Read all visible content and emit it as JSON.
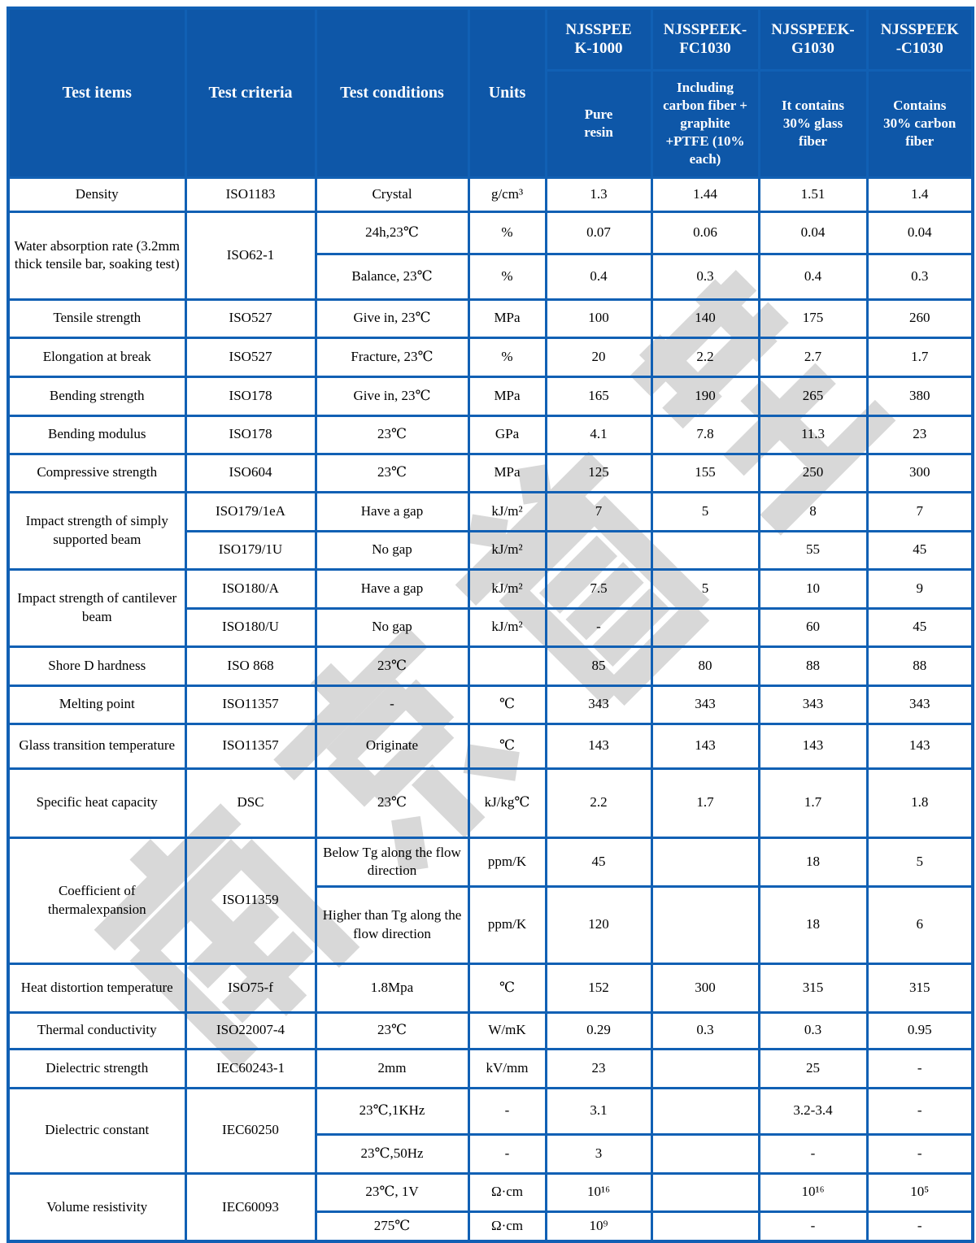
{
  "watermark": {
    "text": "南京首塑",
    "color": "#D8D8D8"
  },
  "colors": {
    "header_bg": "#0E57A8",
    "border_blue": "#1160B4",
    "header_text": "#FFFFFF",
    "body_text": "#000000"
  },
  "header": {
    "static_cols": [
      {
        "label": "Test items"
      },
      {
        "label": "Test criteria"
      },
      {
        "label": "Test conditions"
      },
      {
        "label": "Units"
      }
    ],
    "products": [
      {
        "name_lines": [
          "NJSSPEE",
          "K-1000"
        ],
        "desc_lines": [
          "Pure",
          "resin"
        ]
      },
      {
        "name_lines": [
          "NJSSPEEK-",
          "FC1030"
        ],
        "desc_lines": [
          "Including",
          "carbon fiber +",
          "graphite",
          "+PTFE (10%",
          "each)"
        ]
      },
      {
        "name_lines": [
          "NJSSPEEK-",
          "G1030"
        ],
        "desc_lines": [
          "It contains",
          "30% glass",
          "fiber"
        ]
      },
      {
        "name_lines": [
          "NJSSPEEK",
          "-C1030"
        ],
        "desc_lines": [
          "Contains",
          "30% carbon",
          "fiber"
        ]
      }
    ]
  },
  "body_rows": [
    {
      "cells": [
        {
          "text": "Density",
          "type": "item"
        },
        {
          "text": "ISO1183",
          "type": "criteria"
        },
        {
          "text": "Crystal",
          "type": "condition"
        },
        {
          "text": "g/cm³",
          "type": "unit"
        },
        {
          "text": "1.3",
          "type": "value"
        },
        {
          "text": "1.44",
          "type": "value"
        },
        {
          "text": "1.51",
          "type": "value"
        },
        {
          "text": "1.4",
          "type": "value"
        }
      ]
    },
    {
      "cells": [
        {
          "text": "Water absorption rate (3.2mm thick tensile bar, soaking test)",
          "type": "item",
          "rowspan": 2
        },
        {
          "text": "ISO62-1",
          "type": "criteria",
          "rowspan": 2
        },
        {
          "text": "24h,23℃",
          "type": "condition"
        },
        {
          "text": "%",
          "type": "unit"
        },
        {
          "text": "0.07",
          "type": "value"
        },
        {
          "text": "0.06",
          "type": "value"
        },
        {
          "text": "0.04",
          "type": "value"
        },
        {
          "text": "0.04",
          "type": "value"
        }
      ]
    },
    {
      "cells": [
        {
          "text": "Balance, 23℃",
          "type": "condition"
        },
        {
          "text": "%",
          "type": "unit"
        },
        {
          "text": "0.4",
          "type": "value"
        },
        {
          "text": "0.3",
          "type": "value"
        },
        {
          "text": "0.4",
          "type": "value"
        },
        {
          "text": "0.3",
          "type": "value"
        }
      ]
    },
    {
      "cells": [
        {
          "text": "Tensile strength",
          "type": "item"
        },
        {
          "text": "ISO527",
          "type": "criteria"
        },
        {
          "text": "Give in, 23℃",
          "type": "condition"
        },
        {
          "text": "MPa",
          "type": "unit"
        },
        {
          "text": "100",
          "type": "value"
        },
        {
          "text": "140",
          "type": "value"
        },
        {
          "text": "175",
          "type": "value"
        },
        {
          "text": "260",
          "type": "value"
        }
      ]
    },
    {
      "cells": [
        {
          "text": "Elongation at break",
          "type": "item"
        },
        {
          "text": "ISO527",
          "type": "criteria"
        },
        {
          "text": "Fracture, 23℃",
          "type": "condition"
        },
        {
          "text": "%",
          "type": "unit"
        },
        {
          "text": "20",
          "type": "value"
        },
        {
          "text": "2.2",
          "type": "value"
        },
        {
          "text": "2.7",
          "type": "value"
        },
        {
          "text": "1.7",
          "type": "value"
        }
      ]
    },
    {
      "cells": [
        {
          "text": "Bending strength",
          "type": "item"
        },
        {
          "text": "ISO178",
          "type": "criteria"
        },
        {
          "text": "Give in, 23℃",
          "type": "condition"
        },
        {
          "text": "MPa",
          "type": "unit"
        },
        {
          "text": "165",
          "type": "value"
        },
        {
          "text": "190",
          "type": "value"
        },
        {
          "text": "265",
          "type": "value"
        },
        {
          "text": "380",
          "type": "value"
        }
      ]
    },
    {
      "cells": [
        {
          "text": "Bending modulus",
          "type": "item"
        },
        {
          "text": "ISO178",
          "type": "criteria"
        },
        {
          "text": "23℃",
          "type": "condition"
        },
        {
          "text": "GPa",
          "type": "unit"
        },
        {
          "text": "4.1",
          "type": "value"
        },
        {
          "text": "7.8",
          "type": "value"
        },
        {
          "text": "11.3",
          "type": "value"
        },
        {
          "text": "23",
          "type": "value"
        }
      ]
    },
    {
      "cells": [
        {
          "text": "Compressive strength",
          "type": "item"
        },
        {
          "text": "ISO604",
          "type": "criteria"
        },
        {
          "text": "23℃",
          "type": "condition"
        },
        {
          "text": "MPa",
          "type": "unit"
        },
        {
          "text": "125",
          "type": "value"
        },
        {
          "text": "155",
          "type": "value"
        },
        {
          "text": "250",
          "type": "value"
        },
        {
          "text": "300",
          "type": "value"
        }
      ]
    },
    {
      "cells": [
        {
          "text": "Impact strength of simply supported beam",
          "type": "item",
          "rowspan": 2
        },
        {
          "text": "ISO179/1eA",
          "type": "criteria"
        },
        {
          "text": "Have a gap",
          "type": "condition"
        },
        {
          "text": "kJ/m²",
          "type": "unit"
        },
        {
          "text": "7",
          "type": "value"
        },
        {
          "text": "5",
          "type": "value"
        },
        {
          "text": "8",
          "type": "value"
        },
        {
          "text": "7",
          "type": "value"
        }
      ]
    },
    {
      "cells": [
        {
          "text": "ISO179/1U",
          "type": "criteria"
        },
        {
          "text": "No gap",
          "type": "condition"
        },
        {
          "text": "kJ/m²",
          "type": "unit"
        },
        {
          "text": "",
          "type": "value"
        },
        {
          "text": "",
          "type": "value"
        },
        {
          "text": "55",
          "type": "value"
        },
        {
          "text": "45",
          "type": "value"
        }
      ]
    },
    {
      "cells": [
        {
          "text": "Impact strength of cantilever beam",
          "type": "item",
          "rowspan": 2
        },
        {
          "text": "ISO180/A",
          "type": "criteria"
        },
        {
          "text": "Have a gap",
          "type": "condition"
        },
        {
          "text": "kJ/m²",
          "type": "unit"
        },
        {
          "text": "7.5",
          "type": "value"
        },
        {
          "text": "5",
          "type": "value"
        },
        {
          "text": "10",
          "type": "value"
        },
        {
          "text": "9",
          "type": "value"
        }
      ]
    },
    {
      "cells": [
        {
          "text": "ISO180/U",
          "type": "criteria"
        },
        {
          "text": "No gap",
          "type": "condition"
        },
        {
          "text": "kJ/m²",
          "type": "unit"
        },
        {
          "text": "-",
          "type": "value"
        },
        {
          "text": "",
          "type": "value"
        },
        {
          "text": "60",
          "type": "value"
        },
        {
          "text": "45",
          "type": "value"
        }
      ]
    },
    {
      "cells": [
        {
          "text": "Shore D hardness",
          "type": "item"
        },
        {
          "text": "ISO 868",
          "type": "criteria"
        },
        {
          "text": "23℃",
          "type": "condition"
        },
        {
          "text": "",
          "type": "unit"
        },
        {
          "text": "85",
          "type": "value"
        },
        {
          "text": "80",
          "type": "value"
        },
        {
          "text": "88",
          "type": "value"
        },
        {
          "text": "88",
          "type": "value"
        }
      ]
    },
    {
      "cells": [
        {
          "text": "Melting point",
          "type": "item"
        },
        {
          "text": "ISO11357",
          "type": "criteria"
        },
        {
          "text": "-",
          "type": "condition"
        },
        {
          "text": "℃",
          "type": "unit"
        },
        {
          "text": "343",
          "type": "value"
        },
        {
          "text": "343",
          "type": "value"
        },
        {
          "text": "343",
          "type": "value"
        },
        {
          "text": "343",
          "type": "value"
        }
      ]
    },
    {
      "cells": [
        {
          "text": "Glass transition temperature",
          "type": "item"
        },
        {
          "text": "ISO11357",
          "type": "criteria"
        },
        {
          "text": "Originate",
          "type": "condition"
        },
        {
          "text": "℃",
          "type": "unit"
        },
        {
          "text": "143",
          "type": "value"
        },
        {
          "text": "143",
          "type": "value"
        },
        {
          "text": "143",
          "type": "value"
        },
        {
          "text": "143",
          "type": "value"
        }
      ]
    },
    {
      "cells": [
        {
          "text": "Specific heat capacity",
          "type": "item"
        },
        {
          "text": "DSC",
          "type": "criteria"
        },
        {
          "text": "23℃",
          "type": "condition"
        },
        {
          "text": "kJ/kg℃",
          "type": "unit"
        },
        {
          "text": "2.2",
          "type": "value"
        },
        {
          "text": "1.7",
          "type": "value"
        },
        {
          "text": "1.7",
          "type": "value"
        },
        {
          "text": "1.8",
          "type": "value"
        }
      ]
    },
    {
      "cells": [
        {
          "text": "Coefficient of thermalexpansion",
          "type": "item",
          "rowspan": 2
        },
        {
          "text": "ISO11359",
          "type": "criteria",
          "rowspan": 2
        },
        {
          "text": "Below Tg along the flow direction",
          "type": "condition"
        },
        {
          "text": "ppm/K",
          "type": "unit"
        },
        {
          "text": "45",
          "type": "value"
        },
        {
          "text": "",
          "type": "value"
        },
        {
          "text": "18",
          "type": "value"
        },
        {
          "text": "5",
          "type": "value"
        }
      ]
    },
    {
      "cells": [
        {
          "text": "Higher than Tg along the flow direction",
          "type": "condition"
        },
        {
          "text": "ppm/K",
          "type": "unit"
        },
        {
          "text": "120",
          "type": "value"
        },
        {
          "text": "",
          "type": "value"
        },
        {
          "text": "18",
          "type": "value"
        },
        {
          "text": "6",
          "type": "value"
        }
      ]
    },
    {
      "cells": [
        {
          "text": "Heat distortion temperature",
          "type": "item"
        },
        {
          "text": "ISO75-f",
          "type": "criteria"
        },
        {
          "text": "1.8Mpa",
          "type": "condition"
        },
        {
          "text": "℃",
          "type": "unit"
        },
        {
          "text": "152",
          "type": "value"
        },
        {
          "text": "300",
          "type": "value"
        },
        {
          "text": "315",
          "type": "value"
        },
        {
          "text": "315",
          "type": "value"
        }
      ]
    },
    {
      "cells": [
        {
          "text": "Thermal conductivity",
          "type": "item"
        },
        {
          "text": "ISO22007-4",
          "type": "criteria"
        },
        {
          "text": "23℃",
          "type": "condition"
        },
        {
          "text": "W/mK",
          "type": "unit"
        },
        {
          "text": "0.29",
          "type": "value"
        },
        {
          "text": "0.3",
          "type": "value"
        },
        {
          "text": "0.3",
          "type": "value"
        },
        {
          "text": "0.95",
          "type": "value"
        }
      ]
    },
    {
      "cells": [
        {
          "text": "Dielectric strength",
          "type": "item"
        },
        {
          "text": "IEC60243-1",
          "type": "criteria"
        },
        {
          "text": "2mm",
          "type": "condition"
        },
        {
          "text": "kV/mm",
          "type": "unit"
        },
        {
          "text": "23",
          "type": "value"
        },
        {
          "text": "",
          "type": "value"
        },
        {
          "text": "25",
          "type": "value"
        },
        {
          "text": "-",
          "type": "value"
        }
      ]
    },
    {
      "cells": [
        {
          "text": "Dielectric constant",
          "type": "item",
          "rowspan": 2
        },
        {
          "text": "IEC60250",
          "type": "criteria",
          "rowspan": 2
        },
        {
          "text": "23℃,1KHz",
          "type": "condition"
        },
        {
          "text": "-",
          "type": "unit"
        },
        {
          "text": "3.1",
          "type": "value"
        },
        {
          "text": "",
          "type": "value"
        },
        {
          "text": "3.2-3.4",
          "type": "value"
        },
        {
          "text": "-",
          "type": "value"
        }
      ]
    },
    {
      "cells": [
        {
          "text": "23℃,50Hz",
          "type": "condition"
        },
        {
          "text": "-",
          "type": "unit"
        },
        {
          "text": "3",
          "type": "value"
        },
        {
          "text": "",
          "type": "value"
        },
        {
          "text": "-",
          "type": "value"
        },
        {
          "text": "-",
          "type": "value"
        }
      ]
    },
    {
      "cells": [
        {
          "text": "Volume resistivity",
          "type": "item",
          "rowspan": 2
        },
        {
          "text": "IEC60093",
          "type": "criteria",
          "rowspan": 2
        },
        {
          "text": "23℃, 1V",
          "type": "condition"
        },
        {
          "text": "Ω·cm",
          "type": "unit"
        },
        {
          "text": "10¹⁶",
          "type": "value"
        },
        {
          "text": "",
          "type": "value"
        },
        {
          "text": "10¹⁶",
          "type": "value"
        },
        {
          "text": "10⁵",
          "type": "value"
        }
      ]
    },
    {
      "cells": [
        {
          "text": "275℃",
          "type": "condition"
        },
        {
          "text": "Ω·cm",
          "type": "unit"
        },
        {
          "text": "10⁹",
          "type": "value"
        },
        {
          "text": "",
          "type": "value"
        },
        {
          "text": "-",
          "type": "value"
        },
        {
          "text": "-",
          "type": "value"
        }
      ]
    }
  ]
}
